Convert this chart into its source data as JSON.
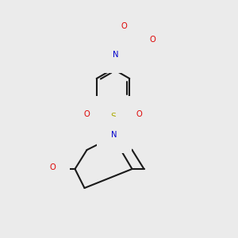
{
  "bg_color": "#ebebeb",
  "C_color": "#1a1a1a",
  "O_color": "#dd0000",
  "N_color": "#0000cc",
  "S_color": "#aaaa00",
  "H_color": "#557070",
  "bond_lw": 1.5,
  "label_fs": 7.2,
  "xlim": [
    0,
    10
  ],
  "ylim": [
    0,
    10
  ]
}
